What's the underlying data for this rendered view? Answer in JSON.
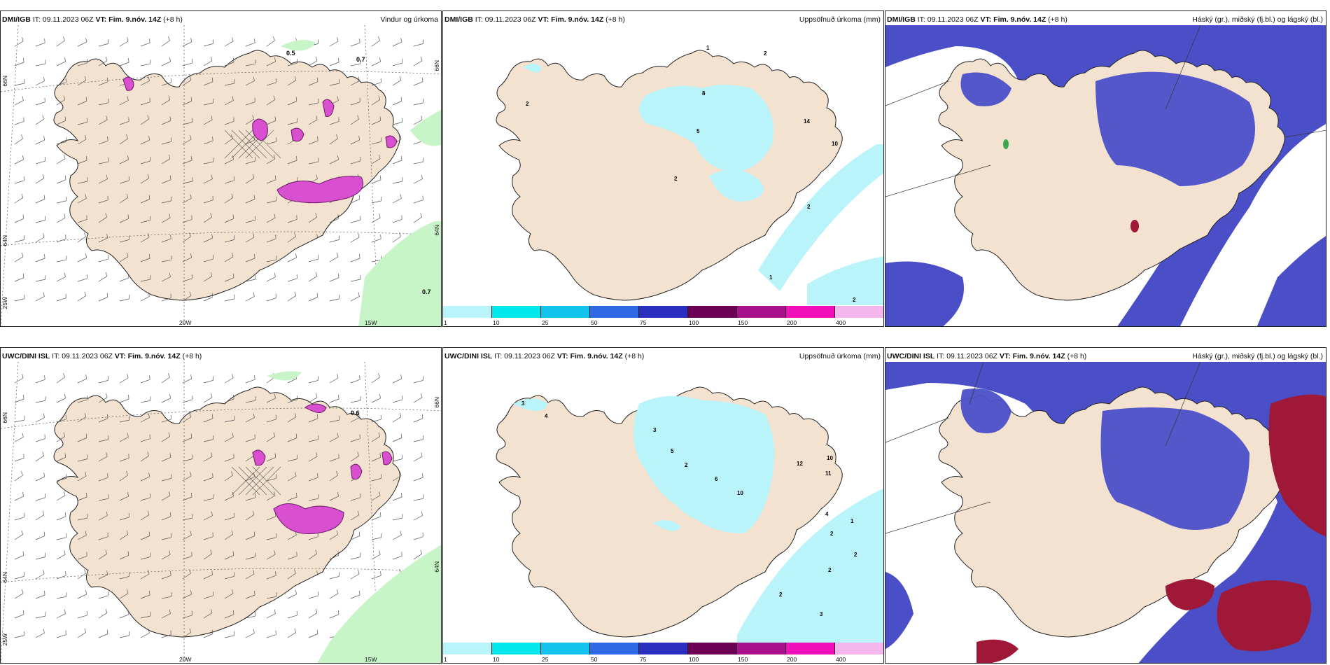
{
  "panels": {
    "p1": {
      "model": "DMI/IGB",
      "it_label": "IT:",
      "it": "09.11.2023 06Z",
      "vt_label": "VT:",
      "vt": "Fim. 9.nóv. 14Z",
      "lead": "(+8 h)",
      "field": "Vindur og úrkoma",
      "lat66": "66N",
      "lat64": "64N",
      "lat66r": "66N",
      "lat64r": "64N",
      "lon20": "20W",
      "lon15": "15W",
      "lon25": "25W",
      "values": [
        "0.5",
        "0.7",
        "0.7"
      ]
    },
    "p2": {
      "model": "DMI/IGB",
      "it_label": "IT:",
      "it": "09.11.2023 06Z",
      "vt_label": "VT:",
      "vt": "Fim. 9.nóv. 14Z",
      "lead": "(+8 h)",
      "field": "Uppsöfnuð úrkoma (mm)",
      "values": [
        "1",
        "2",
        "2",
        "8",
        "5",
        "14",
        "10",
        "2",
        "2",
        "1",
        "2"
      ]
    },
    "p3": {
      "model": "DMI/IGB",
      "it_label": "IT:",
      "it": "09.11.2023 06Z",
      "vt_label": "VT:",
      "vt": "Fim. 9.nóv. 14Z",
      "lead": "(+8 h)",
      "field": "Háský (gr.), miðský (fj.bl.) og lágský (bl.)"
    },
    "p4": {
      "model": "UWC/DINI ISL",
      "it_label": "IT:",
      "it": "09.11.2023 06Z",
      "vt_label": "VT:",
      "vt": "Fim. 9.nóv. 14Z",
      "lead": "(+8 h)",
      "field": "",
      "lat66": "66N",
      "lat64": "64N",
      "lat66r": "66N",
      "lat64r": "64N",
      "lon20": "20W",
      "lon15": "15W",
      "lon25": "25W",
      "values": [
        "0.6"
      ]
    },
    "p5": {
      "model": "UWC/DINI ISL",
      "it_label": "IT:",
      "it": "09.11.2023 06Z",
      "vt_label": "VT:",
      "vt": "Fim. 9.nóv. 14Z",
      "lead": "(+8 h)",
      "field": "Uppsöfnuð úrkoma (mm)",
      "values": [
        "3",
        "4",
        "3",
        "5",
        "2",
        "6",
        "12",
        "10",
        "11",
        "10",
        "4",
        "2",
        "1",
        "2",
        "2",
        "3",
        "2"
      ]
    },
    "p6": {
      "model": "UWC/DINI ISL",
      "it_label": "IT:",
      "it": "09.11.2023 06Z",
      "vt_label": "VT:",
      "vt": "Fim. 9.nóv. 14Z",
      "lead": "(+8 h)",
      "field": "Háský (gr.), miðský (fj.bl.) og lágský (bl.)"
    }
  },
  "colorbar": {
    "labels": [
      "1",
      "10",
      "25",
      "50",
      "75",
      "100",
      "150",
      "200",
      "400"
    ],
    "colors": [
      "#b8f4fa",
      "#00e8ec",
      "#12c3ec",
      "#2e69e6",
      "#2a2fc0",
      "#6c0055",
      "#a8108c",
      "#f00fb8",
      "#f5b6ee"
    ]
  },
  "palette": {
    "land": "#f3e2cf",
    "precip_light": "#c8f5c8",
    "precip_mag": "#d84fcf",
    "lowcloud": "#4a4fc8",
    "midcloud": "#a01838"
  }
}
